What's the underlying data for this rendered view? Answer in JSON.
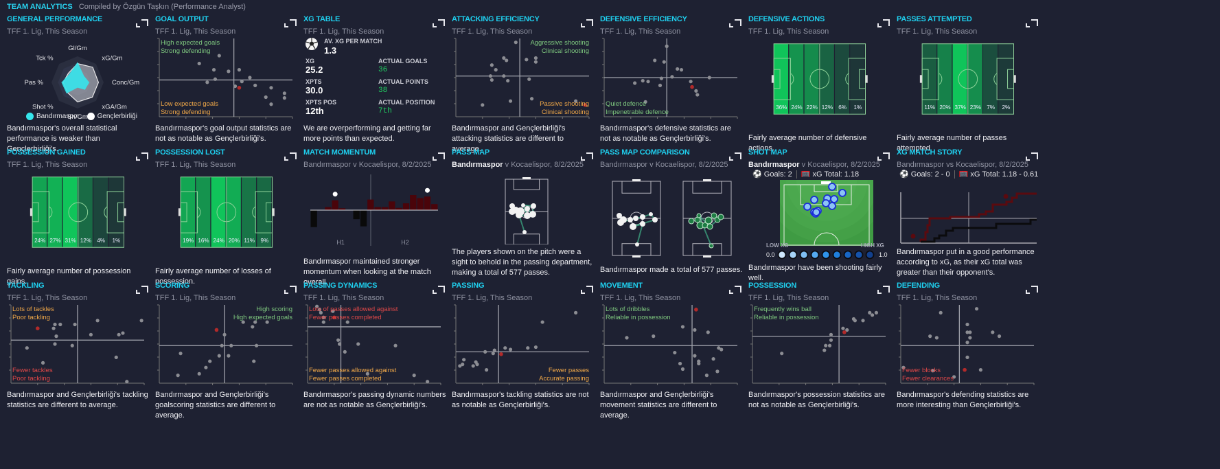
{
  "header": {
    "title": "TEAM ANALYTICS",
    "subtitle": "Compiled by Özgün Taşkın (Performance Analyst)"
  },
  "colors": {
    "accent": "#1fcfee",
    "bg": "#1e2132",
    "team": "#36e6ec",
    "highlight_dot": "#b22a2a",
    "good": "#7fc97f",
    "warn": "#f0a848",
    "bad": "#e04848",
    "actual_green": "#22d163"
  },
  "panels": {
    "general_performance": {
      "title": "GENERAL PERFORMANCE",
      "subtitle": "TFF 1. Lig, This Season",
      "axes": [
        "Gl/Gm",
        "xG/Gm",
        "Conc/Gm",
        "xGA/Gm",
        "Sh/Gm",
        "Shot %",
        "Pas %",
        "Tck %"
      ],
      "legend": [
        "Bandırmaspor",
        "Gençlerbirliği"
      ],
      "series": [
        {
          "name": "Bandırmaspor",
          "values": [
            0.78,
            0.35,
            0.45,
            0.4,
            0.2,
            0.6,
            0.62,
            0.45
          ]
        },
        {
          "name": "Gençlerbirliği",
          "values": [
            0.72,
            0.82,
            0.8,
            0.8,
            0.75,
            0.55,
            0.55,
            0.5
          ]
        }
      ],
      "description": "Bandırmaspor's overall statistical performance is weaker than Gençlerbirliği's."
    },
    "goal_output": {
      "title": "GOAL OUTPUT",
      "subtitle": "TFF 1. Lig, This Season",
      "quadrants": {
        "top_left": [
          "High expected goals",
          "Strong defending"
        ],
        "bottom_left": [
          "Low expected goals",
          "Strong defending"
        ]
      },
      "points": [
        [
          0.3,
          0.68
        ],
        [
          0.45,
          0.78
        ],
        [
          0.41,
          0.6
        ],
        [
          0.52,
          0.58
        ],
        [
          0.42,
          0.48
        ],
        [
          0.36,
          0.44
        ],
        [
          0.6,
          0.6
        ],
        [
          0.62,
          0.45
        ],
        [
          0.68,
          0.5
        ],
        [
          0.72,
          0.4
        ],
        [
          0.84,
          0.37
        ],
        [
          0.8,
          0.25
        ],
        [
          0.84,
          0.16
        ],
        [
          0.94,
          0.24
        ],
        [
          0.94,
          0.3
        ],
        [
          0.57,
          0.39
        ]
      ],
      "highlight": [
        0.6,
        0.37
      ],
      "cross": [
        0.56,
        0.47
      ],
      "description": "Bandırmaspor's goal output statistics are not as notable as Gençlerbirliği's."
    },
    "xg_table": {
      "title": "XG TABLE",
      "subtitle": "TFF 1. Lig, This Season",
      "av_xg_label": "AV. XG PER MATCH",
      "av_xg_value": "1.3",
      "stats": [
        {
          "label": "XG",
          "value": "25.2",
          "actual_label": "ACTUAL GOALS",
          "actual_value": "36"
        },
        {
          "label": "XPTS",
          "value": "30.0",
          "actual_label": "ACTUAL POINTS",
          "actual_value": "38"
        },
        {
          "label": "XPTS POS",
          "value": "12th",
          "actual_label": "ACTUAL POSITION",
          "actual_value": "7th"
        }
      ],
      "description": "We are overperforming and getting far more points than expected."
    },
    "attacking_efficiency": {
      "title": "ATTACKING EFFICIENCY",
      "subtitle": "TFF 1. Lig, This Season",
      "quadrants": {
        "top_right": [
          "Aggressive shooting",
          "Clinical shooting"
        ],
        "bottom_right": [
          "Passive shooting",
          "Clinical shooting"
        ]
      },
      "points": [
        [
          0.45,
          0.95
        ],
        [
          0.3,
          0.6
        ],
        [
          0.27,
          0.66
        ],
        [
          0.36,
          0.75
        ],
        [
          0.38,
          0.72
        ],
        [
          0.26,
          0.52
        ],
        [
          0.36,
          0.52
        ],
        [
          0.27,
          0.47
        ],
        [
          0.39,
          0.46
        ],
        [
          0.55,
          0.48
        ],
        [
          0.57,
          0.23
        ],
        [
          0.41,
          0.2
        ],
        [
          0.2,
          0.15
        ],
        [
          0.6,
          0.7
        ],
        [
          0.6,
          0.75
        ],
        [
          0.53,
          0.73
        ],
        [
          0.9,
          0.2
        ]
      ],
      "highlight": [
        0.97,
        0.15
      ],
      "cross": [
        0.48,
        0.52
      ],
      "description": "Bandırmaspor and Gençlerbirliği's attacking statistics are different to average."
    },
    "defensive_efficiency": {
      "title": "DEFENSIVE EFFICIENCY",
      "subtitle": "TFF 1. Lig, This Season",
      "quadrants": {
        "bottom_left": [
          "Quiet defence",
          "Impenetrable defence"
        ]
      },
      "points": [
        [
          0.47,
          0.9
        ],
        [
          0.38,
          0.72
        ],
        [
          0.45,
          0.7
        ],
        [
          0.55,
          0.61
        ],
        [
          0.58,
          0.6
        ],
        [
          0.51,
          0.51
        ],
        [
          0.43,
          0.49
        ],
        [
          0.23,
          0.43
        ],
        [
          0.29,
          0.46
        ],
        [
          0.33,
          0.45
        ],
        [
          0.42,
          0.4
        ],
        [
          0.65,
          0.45
        ],
        [
          0.7,
          0.28
        ],
        [
          0.69,
          0.33
        ],
        [
          0.79,
          0.5
        ],
        [
          0.31,
          0.19
        ]
      ],
      "highlight": [
        0.66,
        0.38
      ],
      "cross": [
        0.47,
        0.5
      ],
      "description": "Bandırmaspor's defensive statistics are not as notable as Gençlerbirliği's."
    },
    "defensive_actions": {
      "title": "DEFENSIVE ACTIONS",
      "subtitle": "TFF 1. Lig, This Season",
      "zones": [
        36,
        24,
        22,
        12,
        6,
        1
      ],
      "zone_labels": [
        "36%",
        "24%",
        "22%",
        "12%",
        "6%",
        "1%"
      ],
      "description": "Fairly average number of defensive actions."
    },
    "passes_attempted": {
      "title": "PASSES ATTEMPTED",
      "subtitle": "TFF 1. Lig, This Season",
      "zones": [
        11,
        20,
        37,
        23,
        7,
        2
      ],
      "zone_labels": [
        "11%",
        "20%",
        "37%",
        "23%",
        "7%",
        "2%"
      ],
      "description": "Fairly average number of passes attempted"
    },
    "possession_gained": {
      "title": "POSSESSION GAINED",
      "subtitle": "TFF 1. Lig, This Season",
      "zones": [
        24,
        27,
        31,
        12,
        4,
        1
      ],
      "zone_labels": [
        "24%",
        "27%",
        "31%",
        "12%",
        "4%",
        "1%"
      ],
      "description": "Fairly average number of possession gains."
    },
    "possession_lost": {
      "title": "POSSESSION LOST",
      "subtitle": "TFF 1. Lig, This Season",
      "zones": [
        19,
        16,
        24,
        20,
        11,
        9
      ],
      "zone_labels": [
        "19%",
        "16%",
        "24%",
        "20%",
        "11%",
        "9%"
      ],
      "description": "Fairly average number of losses of possession."
    },
    "match_momentum": {
      "title": "MATCH MOMENTUM",
      "subtitle": "Bandırmaspor v Kocaelispor, 8/2/2025",
      "halves": [
        "H1",
        "H2"
      ],
      "bars": [
        -0.45,
        0,
        0.08,
        0.26,
        0.05,
        0,
        -0.24,
        -0.43,
        0.28,
        0.08,
        0.08,
        0.23,
        0.06,
        0.18,
        0.4,
        0.32,
        0.36,
        0.16
      ],
      "goal_markers": [
        3,
        16
      ],
      "description": "Bandırmaspor maintained stronger momentum when looking at the match overall."
    },
    "pass_map": {
      "title": "PASS MAP",
      "subtitle_team": "Bandırmaspor",
      "subtitle_rest": " v Kocaelispor, 8/2/2025",
      "description": "The players shown on the pitch were a sight to behold in the passing department, making a total of 577 passes."
    },
    "pass_map_comparison": {
      "title": "PASS MAP COMPARISON",
      "subtitle": "Bandırmaspor v Kocaelispor, 8/2/2025",
      "description": "Bandırmaspor made a total of 577 passes."
    },
    "shot_map": {
      "title": "SHOT MAP",
      "subtitle_team": "Bandırmaspor",
      "subtitle_rest": " v Kocaelispor, 8/2/2025",
      "goals_label": "Goals: 2",
      "xg_label": "xG Total: 1.18",
      "scale_low": "LOW XG",
      "scale_high": "HIGH XG",
      "scale_min": "0.0",
      "scale_max": "1.0",
      "scale_colors": [
        "#cfe6fb",
        "#a7d3f7",
        "#7fbef3",
        "#55a9ef",
        "#2f93ea",
        "#1f7fdc",
        "#1866c4",
        "#1553ab",
        "#12408d"
      ],
      "description": "Bandırmaspor have been shooting fairly well."
    },
    "xg_match_story": {
      "title": "XG MATCH STORY",
      "subtitle": "Bandırmaspor vs Kocaelispor, 8/2/2025",
      "goals_label": "Goals: 2 - 0",
      "xg_label": "xG Total: 1.18 - 0.61",
      "series": [
        {
          "name": "Bandırmaspor",
          "color": "#5a0a0f",
          "final": 1.18
        },
        {
          "name": "Kocaelispor",
          "color": "#0b0b0d",
          "final": 0.61
        }
      ],
      "description": "Bandırmaspor put in a good performance according to xG, as their xG total was greater than their opponent's."
    },
    "tackling": {
      "title": "TACKLING",
      "subtitle": "TFF 1. Lig, This Season",
      "quadrants": {
        "top_left": [
          "Lots of tackles",
          "Poor tackling"
        ],
        "bottom_left": [
          "Fewer tackles",
          "Poor tackling"
        ]
      },
      "points": [
        [
          0.33,
          0.75
        ],
        [
          0.37,
          0.75
        ],
        [
          0.48,
          0.75
        ],
        [
          0.65,
          0.8
        ],
        [
          0.98,
          0.8
        ],
        [
          0.32,
          0.7
        ],
        [
          0.34,
          0.6
        ],
        [
          0.33,
          0.5
        ],
        [
          0.46,
          0.48
        ],
        [
          0.12,
          0.45
        ],
        [
          0.24,
          0.26
        ],
        [
          0.6,
          0.62
        ],
        [
          0.81,
          0.62
        ],
        [
          0.84,
          0.64
        ],
        [
          0.79,
          0.33
        ],
        [
          0.87,
          0.02
        ]
      ],
      "highlight": [
        0.2,
        0.7
      ],
      "cross": [
        0.5,
        0.55
      ],
      "description": "Bandırmaspor and Gençlerbirliği's tackling statistics are different to average."
    },
    "scoring": {
      "title": "SCORING",
      "subtitle": "TFF 1. Lig, This Season",
      "quadrants": {
        "top_right": [
          "High scoring",
          "High expected goals"
        ]
      },
      "points": [
        [
          0.49,
          0.62
        ],
        [
          0.63,
          0.78
        ],
        [
          0.72,
          0.78
        ],
        [
          0.81,
          0.78
        ],
        [
          0.7,
          0.72
        ],
        [
          0.47,
          0.48
        ],
        [
          0.54,
          0.48
        ],
        [
          0.73,
          0.48
        ],
        [
          0.16,
          0.38
        ],
        [
          0.45,
          0.35
        ],
        [
          0.52,
          0.35
        ],
        [
          0.71,
          0.28
        ],
        [
          0.38,
          0.28
        ],
        [
          0.35,
          0.2
        ],
        [
          0.14,
          0.1
        ],
        [
          0.3,
          0.12
        ]
      ],
      "highlight": [
        0.43,
        0.68
      ],
      "cross": [
        0.49,
        0.48
      ],
      "description": "Bandırmaspor and Gençlerbirliği's goalscoring statistics are different to average."
    },
    "passing_dynamics": {
      "title": "PASSING DYNAMICS",
      "subtitle": "TFF 1. Lig, This Season",
      "quadrants": {
        "top_left": [
          "Lots of passes allowed against",
          "Fewer passes completed"
        ],
        "bottom_left": [
          "Fewer passes allowed against",
          "Fewer passes completed"
        ]
      },
      "points": [
        [
          0.07,
          0.98
        ],
        [
          0.09,
          0.94
        ],
        [
          0.1,
          0.9
        ],
        [
          0.12,
          0.84
        ],
        [
          0.12,
          0.78
        ],
        [
          0.19,
          0.92
        ],
        [
          0.3,
          0.78
        ],
        [
          0.23,
          0.55
        ],
        [
          0.24,
          0.5
        ],
        [
          0.28,
          0.4
        ],
        [
          0.38,
          0.5
        ],
        [
          0.66,
          0.48
        ],
        [
          0.45,
          0.12
        ],
        [
          0.8,
          0.1
        ],
        [
          0.9,
          0.02
        ]
      ],
      "highlight": [
        0.2,
        0.84
      ],
      "cross": [
        0.25,
        0.72
      ],
      "description": "Bandırmaspor's passing dynamic numbers are not as notable as Gençlerbirliği's."
    },
    "passing": {
      "title": "PASSING",
      "subtitle": "TFF 1. Lig, This Season",
      "quadrants": {
        "bottom_right": [
          "Fewer passes",
          "Accurate passing"
        ]
      },
      "points": [
        [
          0.9,
          0.9
        ],
        [
          0.65,
          0.78
        ],
        [
          0.6,
          0.46
        ],
        [
          0.54,
          0.45
        ],
        [
          0.37,
          0.45
        ],
        [
          0.28,
          0.38
        ],
        [
          0.22,
          0.4
        ],
        [
          0.29,
          0.42
        ],
        [
          0.41,
          0.43
        ],
        [
          0.06,
          0.3
        ],
        [
          0.03,
          0.22
        ],
        [
          0.15,
          0.27
        ],
        [
          0.13,
          0.22
        ],
        [
          0.16,
          0.24
        ],
        [
          0.23,
          0.17
        ],
        [
          0.05,
          0.24
        ]
      ],
      "highlight": [
        0.34,
        0.37
      ],
      "cross": [
        0.32,
        0.4
      ],
      "description": "Bandırmaspor's tackling statistics are not as notable as Gençlerbirliği's."
    },
    "movement": {
      "title": "MOVEMENT",
      "subtitle": "TFF 1. Lig, This Season",
      "quadrants": {
        "top_left": [
          "Lots of dribbles",
          "Reliable in possession"
        ]
      },
      "points": [
        [
          0.17,
          0.58
        ],
        [
          0.37,
          0.6
        ],
        [
          0.59,
          0.72
        ],
        [
          0.68,
          0.68
        ],
        [
          0.78,
          0.65
        ],
        [
          0.53,
          0.39
        ],
        [
          0.86,
          0.45
        ],
        [
          0.88,
          0.43
        ],
        [
          0.68,
          0.35
        ],
        [
          0.71,
          0.28
        ],
        [
          0.71,
          0.25
        ],
        [
          0.82,
          0.31
        ],
        [
          0.57,
          0.25
        ],
        [
          0.59,
          0.18
        ],
        [
          0.77,
          0.1
        ],
        [
          0.85,
          0.15
        ]
      ],
      "highlight": [
        0.69,
        0.94
      ],
      "cross": [
        0.66,
        0.48
      ],
      "description": "Bandırmaspor and Gençlerbirliği's movement statistics are different to average."
    },
    "possession": {
      "title": "POSSESSION",
      "subtitle": "TFF 1. Lig, This Season",
      "quadrants": {
        "top_left": [
          "Frequently wins ball",
          "Reliable in possession"
        ]
      },
      "points": [
        [
          0.76,
          0.82
        ],
        [
          0.77,
          0.8
        ],
        [
          0.83,
          0.8
        ],
        [
          0.88,
          0.9
        ],
        [
          0.9,
          0.87
        ],
        [
          0.93,
          0.9
        ],
        [
          0.68,
          0.7
        ],
        [
          0.71,
          0.68
        ],
        [
          0.59,
          0.62
        ],
        [
          0.59,
          0.55
        ],
        [
          0.55,
          0.48
        ],
        [
          0.58,
          0.48
        ],
        [
          0.54,
          0.42
        ],
        [
          0.22,
          0.38
        ]
      ],
      "highlight": [
        0.69,
        0.65
      ],
      "cross": [
        0.65,
        0.6
      ],
      "description": "Bandırmaspor's possession statistics are not as notable as Gençlerbirliği's."
    },
    "defending": {
      "title": "DEFENDING",
      "subtitle": "TFF 1. Lig, This Season",
      "quadrants": {
        "bottom_left": [
          "Fewer blocks",
          "Fewer clearances"
        ]
      },
      "points": [
        [
          0.57,
          0.95
        ],
        [
          0.3,
          0.9
        ],
        [
          0.5,
          0.75
        ],
        [
          0.5,
          0.65
        ],
        [
          0.52,
          0.65
        ],
        [
          0.52,
          0.58
        ],
        [
          0.5,
          0.52
        ],
        [
          0.69,
          0.65
        ],
        [
          0.74,
          0.6
        ],
        [
          0.22,
          0.6
        ],
        [
          0.27,
          0.58
        ],
        [
          0.5,
          0.33
        ],
        [
          0.6,
          0.17
        ],
        [
          0.02,
          0.2
        ],
        [
          0.24,
          0.16
        ],
        [
          0.4,
          0.08
        ]
      ],
      "highlight": [
        0.48,
        0.17
      ],
      "cross": [
        0.44,
        0.48
      ],
      "description": "Bandırmaspor's defending statistics are more interesting than Gençlerbirliği's."
    }
  }
}
